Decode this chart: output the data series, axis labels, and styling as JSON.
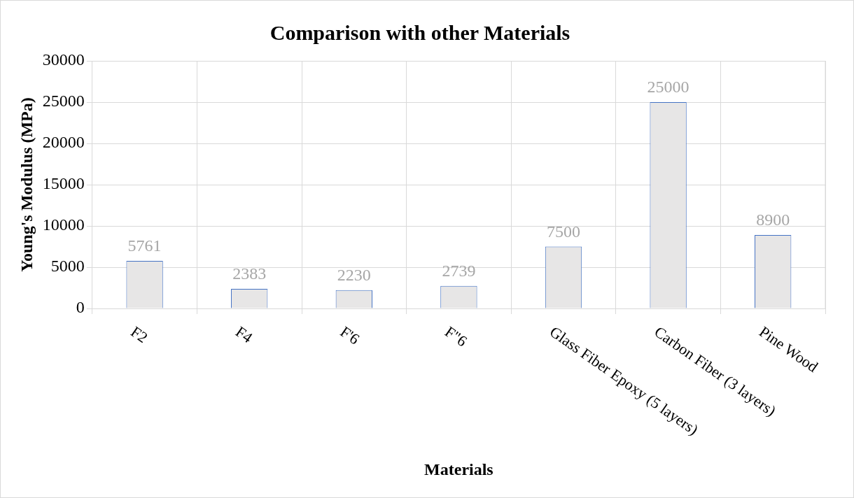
{
  "chart_data": {
    "type": "bar",
    "title": "Comparison with other Materials",
    "xlabel": "Materials",
    "ylabel": "Young's Modulus (MPa)",
    "categories": [
      "F2",
      "F4",
      "F'6",
      "F\"6",
      "Glass Fiber Epoxy (5 layers)",
      "Carbon Fiber (3 layers)",
      "Pine Wood"
    ],
    "values": [
      5761,
      2383,
      2230,
      2739,
      7500,
      25000,
      8900
    ],
    "color": "#e7e6e6",
    "ylim": [
      0,
      30000
    ],
    "yticks": [
      0,
      5000,
      10000,
      15000,
      20000,
      25000,
      30000
    ],
    "grid": true,
    "data_labels": true
  }
}
